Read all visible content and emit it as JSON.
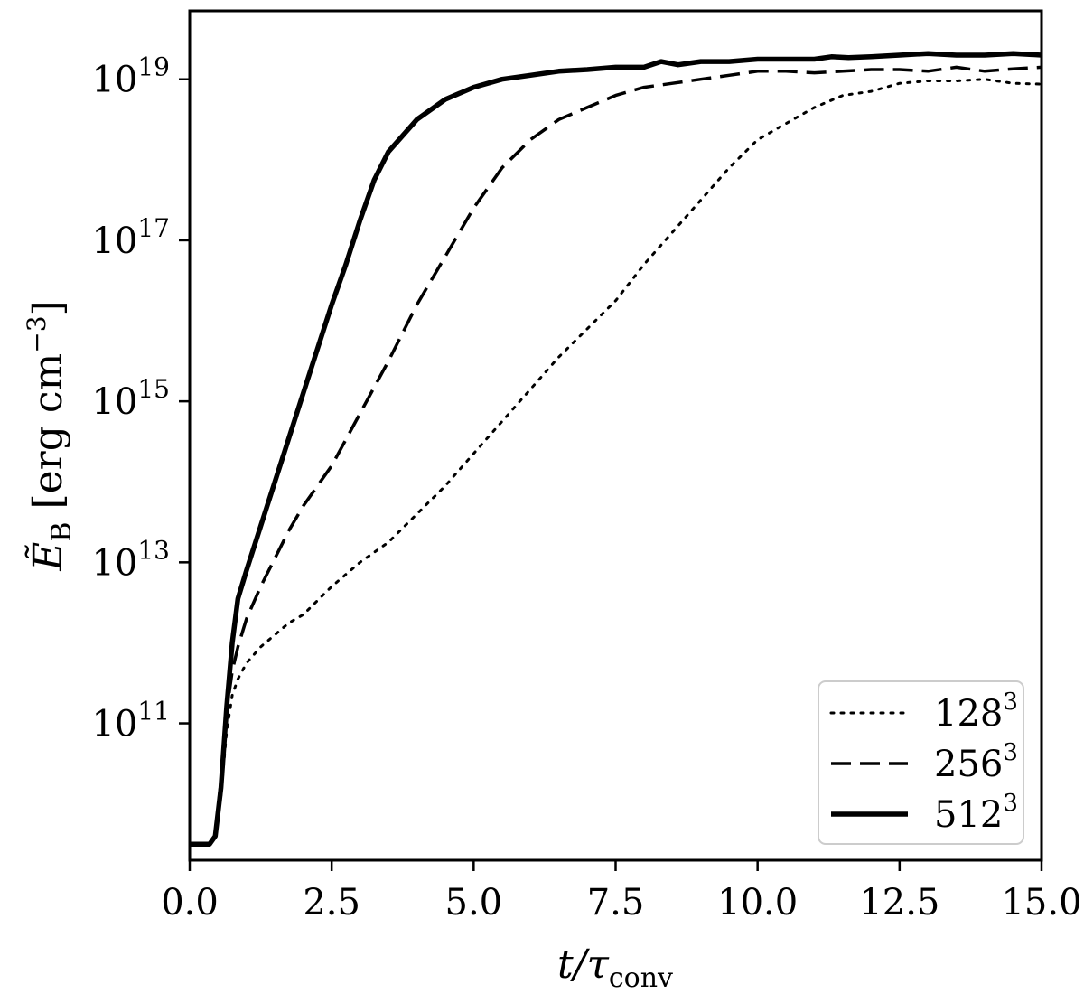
{
  "chart_data": {
    "type": "line",
    "xlabel": {
      "base": "t/τ",
      "sub": "conv"
    },
    "ylabel": {
      "prefix": "Ẽ",
      "sub": "B",
      "unit_open": " [erg cm",
      "unit_sup": "−3",
      "unit_close": "]"
    },
    "xlim": [
      0,
      15
    ],
    "ylim_log10": [
      9.3,
      19.85
    ],
    "yscale": "log",
    "grid": false,
    "legend_position": "lower-right",
    "x_ticks": [
      {
        "value": 0,
        "label": "0.0"
      },
      {
        "value": 2.5,
        "label": "2.5"
      },
      {
        "value": 5,
        "label": "5.0"
      },
      {
        "value": 7.5,
        "label": "7.5"
      },
      {
        "value": 10,
        "label": "10.0"
      },
      {
        "value": 12.5,
        "label": "12.5"
      },
      {
        "value": 15,
        "label": "15.0"
      }
    ],
    "y_ticks": [
      {
        "exp": 11,
        "base": "10",
        "sup": "11"
      },
      {
        "exp": 13,
        "base": "10",
        "sup": "13"
      },
      {
        "exp": 15,
        "base": "10",
        "sup": "15"
      },
      {
        "exp": 17,
        "base": "10",
        "sup": "17"
      },
      {
        "exp": 19,
        "base": "10",
        "sup": "19"
      }
    ],
    "series": [
      {
        "name": "128",
        "name_sup": "3",
        "style": "dotted",
        "x": [
          0,
          0.35,
          0.45,
          0.55,
          0.65,
          0.75,
          0.85,
          1.0,
          1.25,
          1.5,
          1.75,
          2.0,
          2.5,
          3.0,
          3.5,
          4.0,
          4.5,
          5.0,
          5.5,
          6.0,
          6.5,
          7.0,
          7.5,
          8.0,
          8.5,
          9.0,
          9.5,
          10.0,
          10.5,
          11.0,
          11.5,
          12.0,
          12.5,
          13.0,
          13.5,
          14.0,
          14.5,
          15.0
        ],
        "y": [
          9.5,
          9.5,
          9.6,
          10.1,
          10.9,
          11.35,
          11.55,
          11.75,
          11.95,
          12.1,
          12.25,
          12.35,
          12.7,
          13.0,
          13.25,
          13.6,
          13.95,
          14.35,
          14.75,
          15.15,
          15.55,
          15.9,
          16.25,
          16.7,
          17.1,
          17.5,
          17.9,
          18.25,
          18.45,
          18.65,
          18.8,
          18.85,
          18.95,
          18.98,
          18.98,
          19.0,
          18.95,
          18.94
        ]
      },
      {
        "name": "256",
        "name_sup": "3",
        "style": "dashed",
        "x": [
          0,
          0.35,
          0.45,
          0.55,
          0.65,
          0.75,
          0.85,
          1.0,
          1.25,
          1.5,
          1.75,
          2.0,
          2.5,
          3.0,
          3.5,
          4.0,
          4.5,
          5.0,
          5.5,
          6.0,
          6.5,
          7.0,
          7.5,
          8.0,
          8.5,
          9.0,
          9.5,
          10.0,
          10.5,
          11.0,
          11.5,
          12.0,
          12.5,
          13.0,
          13.5,
          14.0,
          14.5,
          15.0
        ],
        "y": [
          9.5,
          9.5,
          9.6,
          10.3,
          11.15,
          11.65,
          11.95,
          12.3,
          12.7,
          13.05,
          13.4,
          13.7,
          14.2,
          14.85,
          15.5,
          16.2,
          16.8,
          17.4,
          17.9,
          18.25,
          18.5,
          18.65,
          18.8,
          18.9,
          18.95,
          19.0,
          19.05,
          19.1,
          19.1,
          19.08,
          19.1,
          19.12,
          19.12,
          19.1,
          19.15,
          19.1,
          19.13,
          19.15
        ]
      },
      {
        "name": "512",
        "name_sup": "3",
        "style": "solid",
        "x": [
          0,
          0.35,
          0.45,
          0.55,
          0.65,
          0.75,
          0.85,
          1.0,
          1.25,
          1.5,
          1.75,
          2.0,
          2.25,
          2.5,
          2.75,
          3.0,
          3.25,
          3.5,
          3.75,
          4.0,
          4.5,
          5.0,
          5.5,
          6.0,
          6.5,
          7.0,
          7.5,
          8.0,
          8.3,
          8.6,
          9.0,
          9.5,
          10.0,
          10.5,
          11.0,
          11.3,
          11.6,
          12.0,
          12.5,
          13.0,
          13.5,
          14.0,
          14.5,
          15.0
        ],
        "y": [
          9.5,
          9.5,
          9.6,
          10.2,
          11.2,
          12.0,
          12.55,
          12.9,
          13.45,
          14.0,
          14.55,
          15.1,
          15.65,
          16.2,
          16.7,
          17.25,
          17.75,
          18.1,
          18.3,
          18.5,
          18.75,
          18.9,
          19.0,
          19.05,
          19.1,
          19.12,
          19.15,
          19.15,
          19.22,
          19.18,
          19.22,
          19.22,
          19.25,
          19.25,
          19.25,
          19.28,
          19.27,
          19.28,
          19.3,
          19.32,
          19.3,
          19.3,
          19.32,
          19.3
        ]
      }
    ]
  }
}
